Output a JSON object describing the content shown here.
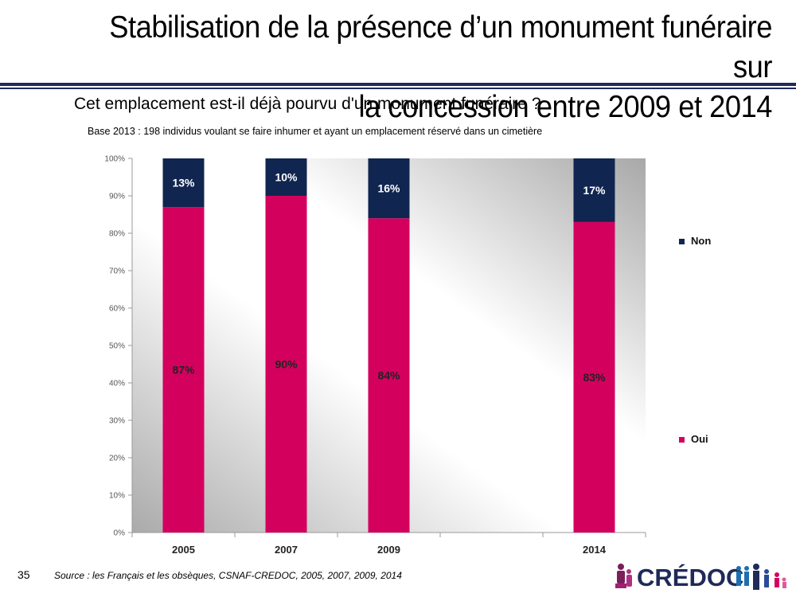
{
  "slide": {
    "title_line1": "Stabilisation de la présence d’un monument funéraire sur",
    "title_line2": "la concession entre 2009 et 2014",
    "question": "Cet emplacement est-il déjà pourvu d'un monument funéraire ?",
    "base": "Base 2013 : 198 individus voulant se faire inhumer et ayant un emplacement réservé dans un cimetière",
    "page_number": "35",
    "source": "Source : les Français et les obsèques, CSNAF-CREDOC, 2005, 2007, 2009, 2014",
    "logo_text": "CRÉDOC"
  },
  "colors": {
    "oui": "#d4005e",
    "non": "#102650",
    "title_rule": "#1f2a5a"
  },
  "chart_data": {
    "type": "bar",
    "stacked": true,
    "percent": true,
    "categories": [
      "2005",
      "2007",
      "2009",
      "",
      "2014"
    ],
    "series": [
      {
        "name": "Oui",
        "values": [
          87,
          90,
          84,
          null,
          83
        ],
        "labels": [
          "87%",
          "90%",
          "84%",
          "",
          "83%"
        ]
      },
      {
        "name": "Non",
        "values": [
          13,
          10,
          16,
          null,
          17
        ],
        "labels": [
          "13%",
          "10%",
          "16%",
          "",
          "17%"
        ]
      }
    ],
    "ylim": [
      0,
      100
    ],
    "yticks": [
      "0%",
      "10%",
      "20%",
      "30%",
      "40%",
      "50%",
      "60%",
      "70%",
      "80%",
      "90%",
      "100%"
    ],
    "legend": {
      "position": "right",
      "entries": [
        "Non",
        "Oui"
      ]
    },
    "grid": false
  }
}
